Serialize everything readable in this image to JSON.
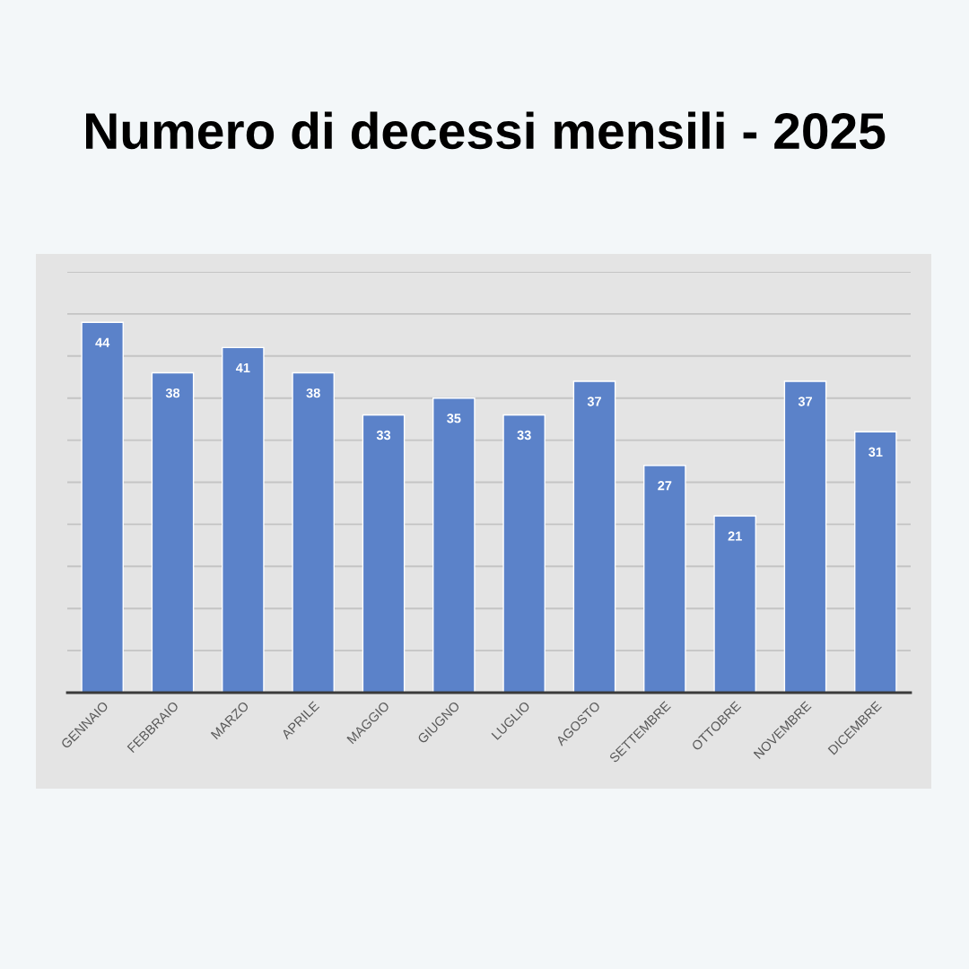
{
  "chart_data": {
    "type": "bar",
    "title": "Numero di decessi mensili - 2025",
    "categories": [
      "GENNAIO",
      "FEBBRAIO",
      "MARZO",
      "APRILE",
      "MAGGIO",
      "GIUGNO",
      "LUGLIO",
      "AGOSTO",
      "SETTEMBRE",
      "OTTOBRE",
      "NOVEMBRE",
      "DICEMBRE"
    ],
    "values": [
      44,
      38,
      41,
      38,
      33,
      35,
      33,
      37,
      27,
      21,
      37,
      31
    ],
    "color": "#5b82c9",
    "ylim": [
      0,
      50
    ],
    "yticks": [
      {
        "value": 0,
        "label": null
      },
      {
        "value": 5,
        "label": null
      },
      {
        "value": 10,
        "label": null
      },
      {
        "value": 15,
        "label": null
      },
      {
        "value": 20,
        "label": null
      },
      {
        "value": 25,
        "label": null
      },
      {
        "value": 30,
        "label": null
      },
      {
        "value": 35,
        "label": null
      },
      {
        "value": 40,
        "label": null
      },
      {
        "value": 45,
        "label": null
      },
      {
        "value": 50,
        "label": null
      }
    ],
    "grid": "y",
    "data_labels": true,
    "tick_labels": "x"
  }
}
